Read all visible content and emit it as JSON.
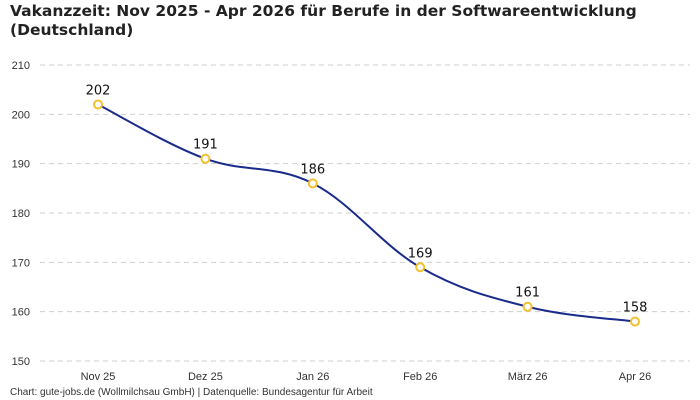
{
  "chart_title_line1": "Vakanzzeit: Nov 2025 - Apr 2026 für Berufe in der Softwareentwicklung",
  "chart_title_line2": "(Deutschland)",
  "footer": "Chart: gute-jobs.de (Wollmilchsau GmbH) | Datenquelle: Bundesagentur für Arbeit",
  "colors": {
    "line": "#1a2b8c",
    "marker": "#f2c12e",
    "grid": "#cfcfcf"
  },
  "chart_data": {
    "type": "line",
    "title": "Vakanzzeit: Nov 2025 - Apr 2026 für Berufe in der Softwareentwicklung (Deutschland)",
    "xlabel": "",
    "ylabel": "",
    "categories": [
      "Nov 25",
      "Dez 25",
      "Jan 26",
      "Feb 26",
      "März 26",
      "Apr 26"
    ],
    "values": [
      202,
      191,
      186,
      169,
      161,
      158
    ],
    "ylim": [
      150,
      210
    ],
    "yticks": [
      150,
      160,
      170,
      180,
      190,
      200,
      210
    ],
    "grid": true,
    "smooth": true,
    "legend": "none"
  }
}
